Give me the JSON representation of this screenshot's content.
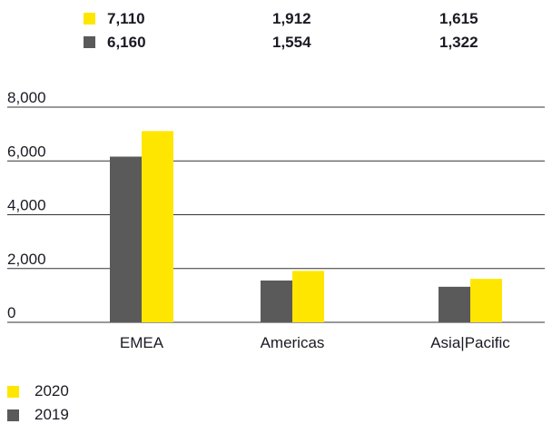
{
  "colors": {
    "series_2020": "#ffe600",
    "series_2019": "#5a5a5a",
    "text": "#1a1a24",
    "grid": "#333333"
  },
  "chart_data": {
    "type": "bar",
    "categories": [
      "EMEA",
      "Americas",
      "Asia|Pacific"
    ],
    "series": [
      {
        "name": "2019",
        "values": [
          6160,
          1554,
          1322
        ],
        "color": "#5a5a5a"
      },
      {
        "name": "2020",
        "values": [
          7110,
          1912,
          1615
        ],
        "color": "#ffe600"
      }
    ],
    "ylim": [
      0,
      8000
    ],
    "yticks": [
      "0",
      "2,000",
      "4,000",
      "6,000",
      "8,000"
    ],
    "grid": true,
    "legend_position": "bottom-left"
  },
  "value_table": {
    "rows": [
      {
        "series": "2020",
        "values": [
          "7,110",
          "1,912",
          "1,615"
        ]
      },
      {
        "series": "2019",
        "values": [
          "6,160",
          "1,554",
          "1,322"
        ]
      }
    ]
  },
  "legend": [
    {
      "label": "2020"
    },
    {
      "label": "2019"
    }
  ]
}
